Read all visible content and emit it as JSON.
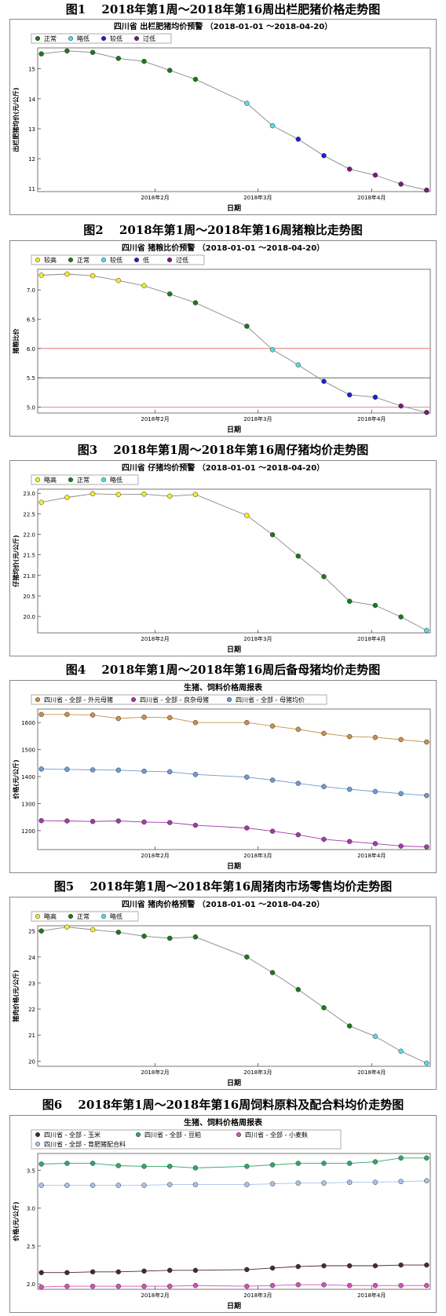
{
  "figures": [
    {
      "figure_title": "图1　 2018年第1周～2018年第16周出栏肥猪价格走势图",
      "chart_title": "四川省 出栏肥猪均价预警 （2018-01-01 ～2018-04-20）",
      "chart_data": {
        "type": "line",
        "title": "四川省 出栏肥猪均价预警 （2018-01-01 ～2018-04-20）",
        "xlabel": "日期",
        "ylabel": "出栏肥猪均价(元/公斤)",
        "x_ticks": [
          "2018年2月",
          "2018年3月",
          "2018年4月"
        ],
        "y_ticks": [
          "11",
          "12",
          "13",
          "14",
          "15"
        ],
        "ylim": [
          10.9,
          15.7
        ],
        "legend": [
          {
            "name": "正常",
            "color": "#1a7a1a"
          },
          {
            "name": "略低",
            "color": "#55dddd"
          },
          {
            "name": "较低",
            "color": "#1f1fd0"
          },
          {
            "name": "过低",
            "color": "#7a1a7a"
          }
        ],
        "x": [
          "2018-01-01",
          "2018-01-08",
          "2018-01-15",
          "2018-01-22",
          "2018-01-29",
          "2018-02-05",
          "2018-02-12",
          "2018-02-26",
          "2018-03-05",
          "2018-03-12",
          "2018-03-19",
          "2018-03-26",
          "2018-04-02",
          "2018-04-09",
          "2018-04-16"
        ],
        "y": [
          15.5,
          15.6,
          15.55,
          15.35,
          15.25,
          14.95,
          14.65,
          13.85,
          13.1,
          12.65,
          12.1,
          11.65,
          11.45,
          11.15,
          10.95
        ],
        "status": [
          0,
          0,
          0,
          0,
          0,
          0,
          0,
          1,
          1,
          2,
          2,
          3,
          3,
          3,
          3
        ]
      }
    },
    {
      "figure_title": "图2　 2018年第1周～2018年第16周猪粮比走势图",
      "chart_title": "四川省 猪粮比价预警 （2018-01-01 ～2018-04-20）",
      "chart_data": {
        "type": "line",
        "title": "四川省 猪粮比价预警 （2018-01-01 ～2018-04-20）",
        "xlabel": "日期",
        "ylabel": "猪粮比价",
        "x_ticks": [
          "2018年2月",
          "2018年3月",
          "2018年4月"
        ],
        "y_ticks": [
          "5.0",
          "5.5",
          "6.0",
          "6.5",
          "7.0"
        ],
        "ylim": [
          4.9,
          7.35
        ],
        "ref_lines": [
          {
            "y": 5.0,
            "color": "#e06060"
          },
          {
            "y": 5.5,
            "color": "#555555"
          },
          {
            "y": 6.0,
            "color": "#e06060"
          }
        ],
        "legend": [
          {
            "name": "较高",
            "color": "#f2ec2a"
          },
          {
            "name": "正常",
            "color": "#1a7a1a"
          },
          {
            "name": "较低",
            "color": "#55dddd"
          },
          {
            "name": "低",
            "color": "#1f1fd0"
          },
          {
            "name": "过低",
            "color": "#7a1a7a"
          }
        ],
        "x": [
          "2018-01-01",
          "2018-01-08",
          "2018-01-15",
          "2018-01-22",
          "2018-01-29",
          "2018-02-05",
          "2018-02-12",
          "2018-02-26",
          "2018-03-05",
          "2018-03-12",
          "2018-03-19",
          "2018-03-26",
          "2018-04-02",
          "2018-04-09",
          "2018-04-16"
        ],
        "y": [
          7.25,
          7.27,
          7.24,
          7.16,
          7.07,
          6.93,
          6.78,
          6.38,
          5.98,
          5.72,
          5.44,
          5.21,
          5.17,
          5.02,
          4.91
        ],
        "status": [
          0,
          0,
          0,
          0,
          0,
          1,
          1,
          1,
          2,
          2,
          3,
          3,
          3,
          4,
          4
        ]
      }
    },
    {
      "figure_title": "图3　 2018年第1周～2018年第16周仔猪均价走势图",
      "chart_title": "四川省 仔猪均价预警 （2018-01-01 ～2018-04-20）",
      "chart_data": {
        "type": "line",
        "title": "四川省 仔猪均价预警 （2018-01-01 ～2018-04-20）",
        "xlabel": "日期",
        "ylabel": "仔猪均价(元/公斤)",
        "x_ticks": [
          "2018年2月",
          "2018年3月",
          "2018年4月"
        ],
        "y_ticks": [
          "20.0",
          "20.5",
          "21.0",
          "21.5",
          "22.0",
          "22.5",
          "23.0"
        ],
        "ylim": [
          19.6,
          23.1
        ],
        "legend": [
          {
            "name": "略高",
            "color": "#f2ec2a"
          },
          {
            "name": "正常",
            "color": "#1a7a1a"
          },
          {
            "name": "略低",
            "color": "#55dddd"
          }
        ],
        "x": [
          "2018-01-01",
          "2018-01-08",
          "2018-01-15",
          "2018-01-22",
          "2018-01-29",
          "2018-02-05",
          "2018-02-12",
          "2018-02-26",
          "2018-03-05",
          "2018-03-12",
          "2018-03-19",
          "2018-03-26",
          "2018-04-02",
          "2018-04-09",
          "2018-04-16"
        ],
        "y": [
          22.78,
          22.9,
          22.99,
          22.97,
          22.98,
          22.93,
          22.97,
          22.46,
          21.99,
          21.47,
          20.97,
          20.37,
          20.27,
          19.99,
          19.66
        ],
        "status": [
          0,
          0,
          0,
          0,
          0,
          0,
          0,
          0,
          1,
          1,
          1,
          1,
          1,
          1,
          2
        ]
      }
    },
    {
      "figure_title": "图4　 2018年第1周～2018年第16周后备母猪均价走势图",
      "chart_title": "生猪、饲料价格周报表",
      "chart_data": {
        "type": "line",
        "title": "生猪、饲料价格周报表",
        "xlabel": "日期",
        "ylabel": "价格(元/公斤)",
        "x_ticks": [
          "2018年2月",
          "2018年3月",
          "2018年4月"
        ],
        "y_ticks": [
          "1200",
          "1300",
          "1400",
          "1500",
          "1600"
        ],
        "ylim": [
          1130,
          1650
        ],
        "x": [
          "2018-01-01",
          "2018-01-08",
          "2018-01-15",
          "2018-01-22",
          "2018-01-29",
          "2018-02-05",
          "2018-02-12",
          "2018-02-26",
          "2018-03-05",
          "2018-03-12",
          "2018-03-19",
          "2018-03-26",
          "2018-04-02",
          "2018-04-09",
          "2018-04-16"
        ],
        "series": [
          {
            "name": "四川省 - 全部 - 外元母猪",
            "color": "#c8914e",
            "values": [
              1630,
              1630,
              1628,
              1615,
              1620,
              1618,
              1600,
              1600,
              1587,
              1575,
              1560,
              1548,
              1545,
              1537,
              1528
            ]
          },
          {
            "name": "四川省 - 全部 - 良杂母猪",
            "color": "#a23ba2",
            "values": [
              1237,
              1236,
              1234,
              1236,
              1232,
              1230,
              1220,
              1210,
              1198,
              1185,
              1168,
              1160,
              1152,
              1143,
              1140
            ]
          },
          {
            "name": "四川省 - 全部 - 母猪均价",
            "color": "#6f9bd1",
            "values": [
              1428,
              1427,
              1425,
              1424,
              1420,
              1418,
              1408,
              1398,
              1387,
              1375,
              1363,
              1353,
              1345,
              1337,
              1330
            ]
          }
        ]
      }
    },
    {
      "figure_title": "图5　 2018年第1周～2018年第16周猪肉市场零售均价走势图",
      "chart_title": "四川省 猪肉价格预警 （2018-01-01 ～2018-04-20）",
      "chart_data": {
        "type": "line",
        "title": "四川省 猪肉价格预警 （2018-01-01 ～2018-04-20）",
        "xlabel": "日期",
        "ylabel": "猪肉价格(元/公斤)",
        "x_ticks": [
          "2018年2月",
          "2018年3月",
          "2018年4月"
        ],
        "y_ticks": [
          "20",
          "21",
          "22",
          "23",
          "24",
          "25"
        ],
        "ylim": [
          19.8,
          25.2
        ],
        "legend": [
          {
            "name": "略高",
            "color": "#f2ec2a"
          },
          {
            "name": "正常",
            "color": "#1a7a1a"
          },
          {
            "name": "略低",
            "color": "#55dddd"
          }
        ],
        "x": [
          "2018-01-01",
          "2018-01-08",
          "2018-01-15",
          "2018-01-22",
          "2018-01-29",
          "2018-02-05",
          "2018-02-12",
          "2018-02-26",
          "2018-03-05",
          "2018-03-12",
          "2018-03-19",
          "2018-03-26",
          "2018-04-02",
          "2018-04-09",
          "2018-04-16"
        ],
        "y": [
          25.0,
          25.15,
          25.05,
          24.95,
          24.8,
          24.72,
          24.77,
          24.0,
          23.4,
          22.75,
          22.05,
          21.35,
          20.95,
          20.38,
          19.92
        ],
        "status": [
          1,
          0,
          0,
          1,
          1,
          1,
          1,
          1,
          1,
          1,
          1,
          1,
          2,
          2,
          2
        ]
      }
    },
    {
      "figure_title": "图6　 2018年第1周～2018年第16周饲料原料及配合料均价走势图",
      "chart_title": "生猪、饲料价格周报表",
      "chart_data": {
        "type": "line",
        "title": "生猪、饲料价格周报表",
        "xlabel": "日期",
        "ylabel": "价格(元/公斤)",
        "x_ticks": [
          "2018年2月",
          "2018年3月",
          "2018年4月"
        ],
        "y_ticks": [
          "2.0",
          "2.5",
          "3.0",
          "3.5"
        ],
        "ylim": [
          1.93,
          3.72
        ],
        "x": [
          "2018-01-01",
          "2018-01-08",
          "2018-01-15",
          "2018-01-22",
          "2018-01-29",
          "2018-02-05",
          "2018-02-12",
          "2018-02-26",
          "2018-03-05",
          "2018-03-12",
          "2018-03-19",
          "2018-03-26",
          "2018-04-02",
          "2018-04-09",
          "2018-04-16"
        ],
        "series": [
          {
            "name": "四川省 - 全部 - 玉米",
            "color": "#4a2a2a",
            "values": [
              2.15,
              2.15,
              2.16,
              2.16,
              2.17,
              2.18,
              2.18,
              2.19,
              2.21,
              2.23,
              2.24,
              2.24,
              2.24,
              2.25,
              2.25
            ]
          },
          {
            "name": "四川省 - 全部 - 豆粕",
            "color": "#2fa86a",
            "values": [
              3.58,
              3.59,
              3.59,
              3.56,
              3.55,
              3.55,
              3.53,
              3.55,
              3.57,
              3.59,
              3.59,
              3.59,
              3.61,
              3.66,
              3.66
            ]
          },
          {
            "name": "四川省 - 全部 - 小麦麸",
            "color": "#d64fb8",
            "values": [
              1.96,
              1.97,
              1.97,
              1.97,
              1.97,
              1.97,
              1.98,
              1.97,
              1.98,
              1.99,
              1.99,
              1.98,
              1.98,
              1.98,
              1.98
            ]
          },
          {
            "name": "四川省 - 全部 - 育肥猪配合料",
            "color": "#a9c2ea",
            "values": [
              3.3,
              3.3,
              3.3,
              3.3,
              3.3,
              3.31,
              3.31,
              3.31,
              3.32,
              3.33,
              3.33,
              3.34,
              3.34,
              3.35,
              3.36
            ]
          }
        ]
      }
    }
  ]
}
